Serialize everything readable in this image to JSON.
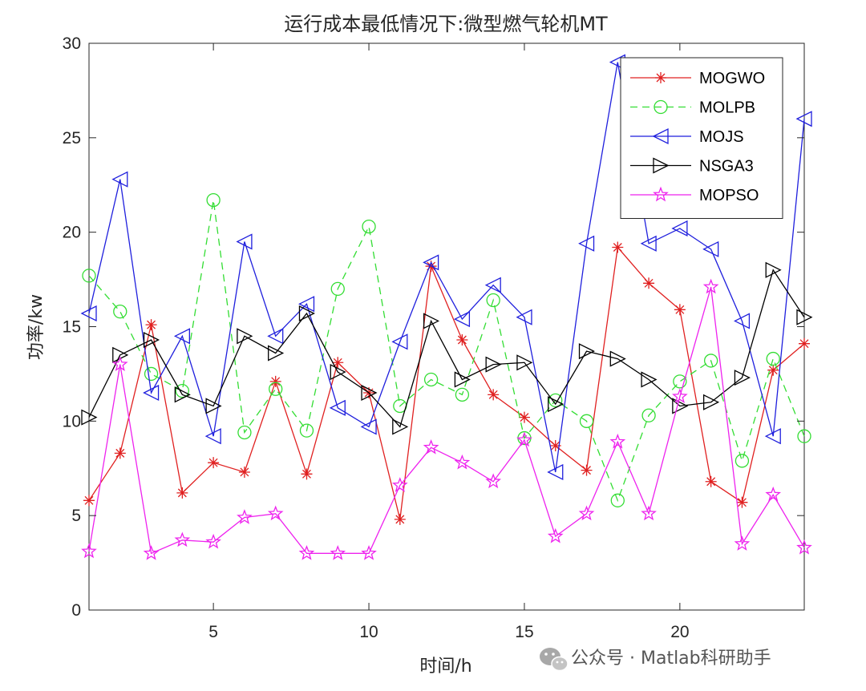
{
  "chart_data": {
    "type": "line",
    "title": "运行成本最低情况下:微型燃气轮机MT",
    "xlabel": "时间/h",
    "ylabel": "功率/kw",
    "xlim": [
      1,
      24
    ],
    "ylim": [
      0,
      30
    ],
    "xticks": [
      5,
      10,
      15,
      20
    ],
    "yticks": [
      0,
      5,
      10,
      15,
      20,
      25,
      30
    ],
    "grid": false,
    "legend_position": "top-right",
    "x": [
      1,
      2,
      3,
      4,
      5,
      6,
      7,
      8,
      9,
      10,
      11,
      12,
      13,
      14,
      15,
      16,
      17,
      18,
      19,
      20,
      21,
      22,
      23,
      24
    ],
    "series": [
      {
        "name": "MOGWO",
        "color": "#e02020",
        "line": "solid",
        "marker": "asterisk",
        "values": [
          5.8,
          8.3,
          15.1,
          6.2,
          7.8,
          7.3,
          12.1,
          7.2,
          13.1,
          11.5,
          4.8,
          18.2,
          14.3,
          11.4,
          10.2,
          8.7,
          7.4,
          19.2,
          17.3,
          15.9,
          6.8,
          5.7,
          12.7,
          14.1
        ]
      },
      {
        "name": "MOLPB",
        "color": "#33dd33",
        "line": "dashed",
        "marker": "circle",
        "values": [
          17.7,
          15.8,
          12.5,
          11.6,
          21.7,
          9.4,
          11.7,
          9.5,
          17.0,
          20.3,
          10.8,
          12.2,
          11.4,
          16.4,
          9.1,
          11.1,
          10.0,
          5.8,
          10.3,
          12.1,
          13.2,
          7.9,
          13.3,
          9.2
        ]
      },
      {
        "name": "MOJS",
        "color": "#1f1fdd",
        "line": "solid",
        "marker": "triangle-left",
        "values": [
          15.7,
          22.8,
          11.5,
          14.5,
          9.2,
          19.5,
          14.5,
          16.2,
          10.7,
          9.7,
          14.2,
          18.4,
          15.4,
          17.2,
          15.5,
          7.3,
          19.4,
          29.0,
          19.4,
          20.2,
          19.1,
          15.3,
          9.2,
          26.0
        ]
      },
      {
        "name": "NSGA3",
        "color": "#000000",
        "line": "solid",
        "marker": "triangle-right",
        "values": [
          10.2,
          13.5,
          14.3,
          11.4,
          10.8,
          14.5,
          13.6,
          15.7,
          12.6,
          11.5,
          9.7,
          15.3,
          12.2,
          13.0,
          13.1,
          10.9,
          13.7,
          13.3,
          12.2,
          10.8,
          11.0,
          12.3,
          18.0,
          15.5
        ]
      },
      {
        "name": "MOPSO",
        "color": "#ee22ee",
        "line": "solid",
        "marker": "star",
        "values": [
          3.1,
          13.0,
          3.0,
          3.7,
          3.6,
          4.9,
          5.1,
          3.0,
          3.0,
          3.0,
          6.6,
          8.6,
          7.8,
          6.8,
          9.0,
          3.9,
          5.1,
          8.9,
          5.1,
          11.3,
          17.1,
          3.5,
          6.1,
          3.3
        ]
      }
    ]
  },
  "watermark": {
    "icon": "wechat-icon",
    "text": "公众号 · Matlab科研助手"
  }
}
